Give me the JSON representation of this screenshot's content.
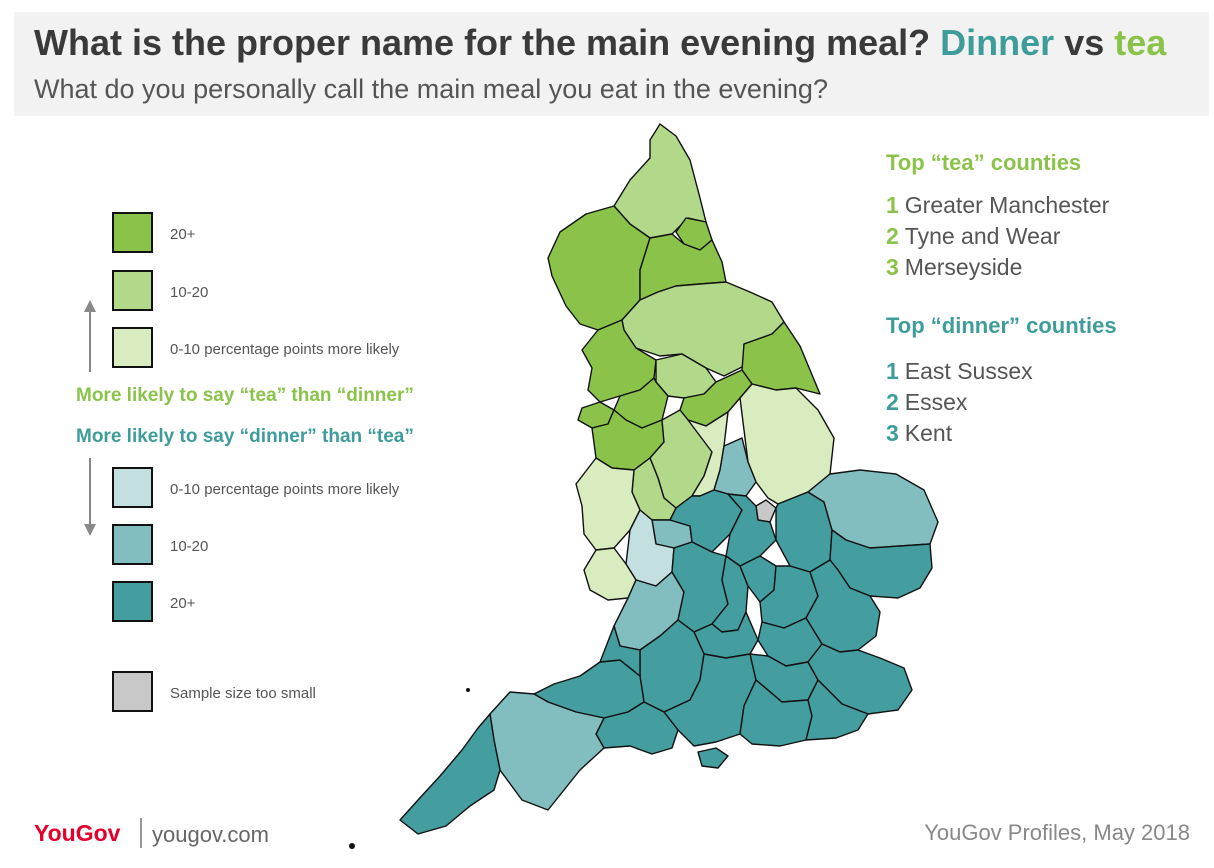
{
  "header": {
    "title_main": "What is the proper name for the main evening meal? ",
    "title_dinner": "Dinner",
    "title_vs": " vs ",
    "title_tea": "tea",
    "subtitle": "What do you personally call the main meal you eat in the evening?"
  },
  "colors": {
    "tea_20_plus": "#8bc34a",
    "tea_10_20": "#b2d98a",
    "tea_0_10": "#d9ecc0",
    "dinner_0_10": "#c3dfe0",
    "dinner_10_20": "#82bec0",
    "dinner_20_plus": "#449d9e",
    "too_small": "#c8c8c8",
    "tea_text": "#8bc34a",
    "dinner_text": "#3e9d9b"
  },
  "legend": {
    "tea": [
      {
        "label": "20+",
        "color": "#8bc34a"
      },
      {
        "label": "10-20",
        "color": "#b2d98a"
      },
      {
        "label": "0-10 percentage points more likely",
        "color": "#d9ecc0"
      }
    ],
    "tea_caption": "More likely to say  “tea” than “dinner”",
    "dinner_caption": "More likely to say  “dinner” than “tea”",
    "dinner": [
      {
        "label": "0-10 percentage points more likely",
        "color": "#c3dfe0"
      },
      {
        "label": "10-20",
        "color": "#82bec0"
      },
      {
        "label": "20+",
        "color": "#449d9e"
      }
    ],
    "too_small": {
      "label": "Sample size too small",
      "color": "#c8c8c8"
    }
  },
  "top_tea": {
    "heading": "Top “tea” counties",
    "items": [
      {
        "rank": "1",
        "name": "Greater Manchester"
      },
      {
        "rank": "2",
        "name": "Tyne and Wear"
      },
      {
        "rank": "3",
        "name": "Merseyside"
      }
    ]
  },
  "top_dinner": {
    "heading": "Top “dinner” counties",
    "items": [
      {
        "rank": "1",
        "name": "East Sussex"
      },
      {
        "rank": "2",
        "name": "Essex"
      },
      {
        "rank": "3",
        "name": "Kent"
      }
    ]
  },
  "footer": {
    "logo": "YouGov",
    "site": "yougov.com",
    "source": "YouGov Profiles, May 2018"
  }
}
